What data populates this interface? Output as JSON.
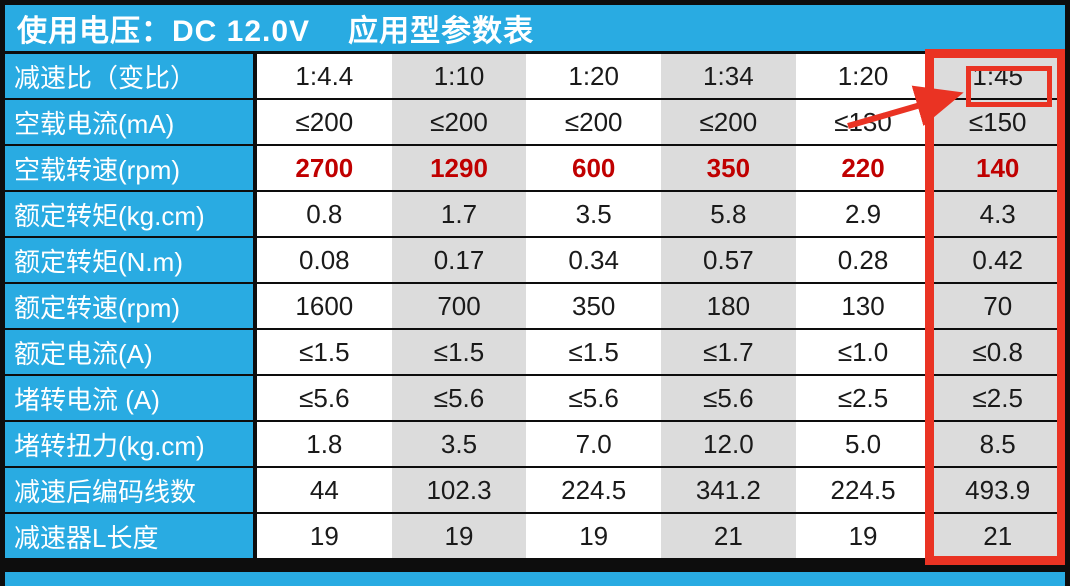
{
  "title": {
    "voltage": "使用电压：DC 12.0V",
    "name": "应用型参数表"
  },
  "table": {
    "rows": [
      {
        "label": "减速比（变比）",
        "values": [
          "1:4.4",
          "1:10",
          "1:20",
          "1:34",
          "1:20",
          "1:45"
        ],
        "red": false
      },
      {
        "label": "空载电流(mA)",
        "values": [
          "≤200",
          "≤200",
          "≤200",
          "≤200",
          "≤130",
          "≤150"
        ],
        "red": false
      },
      {
        "label": "空载转速(rpm)",
        "values": [
          "2700",
          "1290",
          "600",
          "350",
          "220",
          "140"
        ],
        "red": true
      },
      {
        "label": "额定转矩(kg.cm)",
        "values": [
          "0.8",
          "1.7",
          "3.5",
          "5.8",
          "2.9",
          "4.3"
        ],
        "red": false
      },
      {
        "label": "额定转矩(N.m)",
        "values": [
          "0.08",
          "0.17",
          "0.34",
          "0.57",
          "0.28",
          "0.42"
        ],
        "red": false
      },
      {
        "label": "额定转速(rpm)",
        "values": [
          "1600",
          "700",
          "350",
          "180",
          "130",
          "70"
        ],
        "red": false
      },
      {
        "label": "额定电流(A)",
        "values": [
          "≤1.5",
          "≤1.5",
          "≤1.5",
          "≤1.7",
          "≤1.0",
          "≤0.8"
        ],
        "red": false
      },
      {
        "label": "堵转电流 (A)",
        "values": [
          "≤5.6",
          "≤5.6",
          "≤5.6",
          "≤5.6",
          "≤2.5",
          "≤2.5"
        ],
        "red": false
      },
      {
        "label": "堵转扭力(kg.cm)",
        "values": [
          "1.8",
          "3.5",
          "7.0",
          "12.0",
          "5.0",
          "8.5"
        ],
        "red": false
      },
      {
        "label": "减速后编码线数",
        "values": [
          "44",
          "102.3",
          "224.5",
          "341.2",
          "224.5",
          "493.9"
        ],
        "red": false
      },
      {
        "label": "减速器L长度",
        "values": [
          "19",
          "19",
          "19",
          "21",
          "19",
          "21"
        ],
        "red": false
      }
    ]
  },
  "annotation": {
    "highlighted_column_value": "1:45",
    "highlighted_column_index": 5
  },
  "colors": {
    "header_blue": "#29ABE2",
    "alt_column_gray": "#DCDCDC",
    "red_value_text": "#C00000",
    "annotation_red": "#EA3323",
    "border_black": "#0D0D0D"
  }
}
